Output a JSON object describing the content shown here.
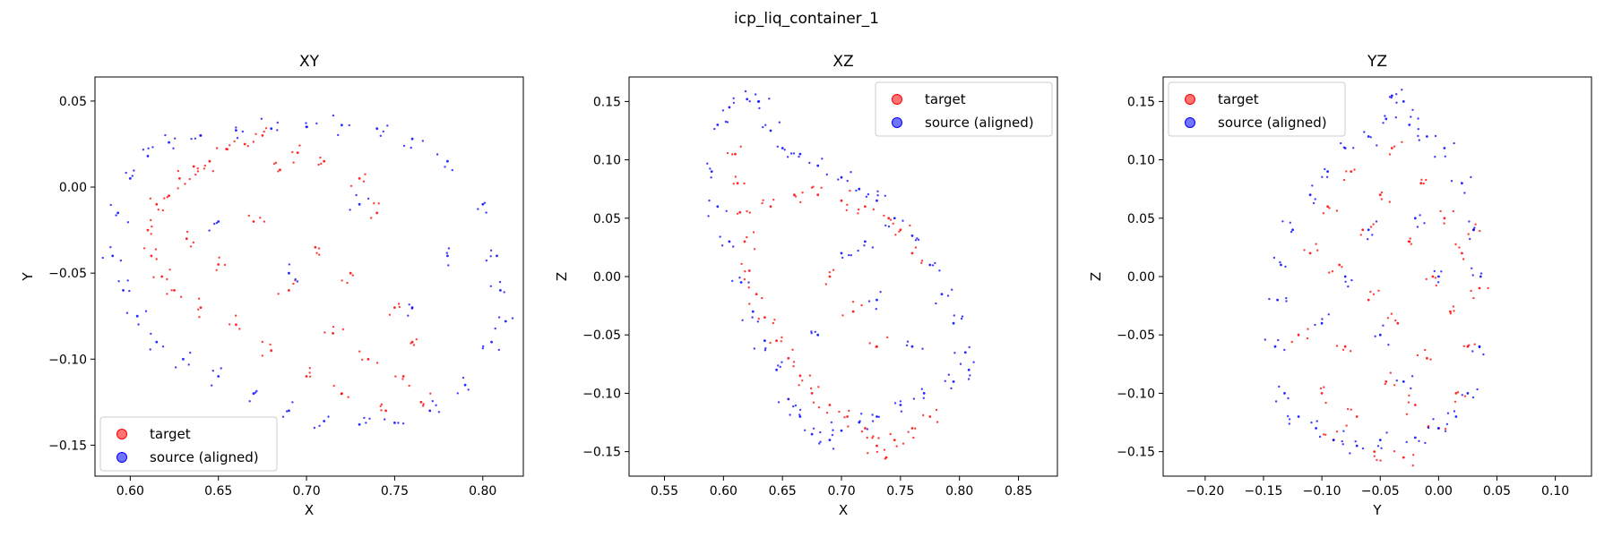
{
  "figure": {
    "title": "icp_liq_container_1"
  },
  "legend": {
    "target": "target",
    "source": "source (aligned)"
  },
  "colors": {
    "target": "#ff0000",
    "source": "#0000ff"
  },
  "chart_data": [
    {
      "type": "scatter",
      "title": "XY",
      "xlabel": "X",
      "ylabel": "Y",
      "xlim": [
        0.58,
        0.823
      ],
      "ylim": [
        -0.168,
        0.064
      ],
      "xticks": [
        0.6,
        0.65,
        0.7,
        0.75,
        0.8
      ],
      "xtick_labels": [
        "0.60",
        "0.65",
        "0.70",
        "0.75",
        "0.80"
      ],
      "yticks": [
        0.05,
        0.0,
        -0.05,
        -0.1,
        -0.15
      ],
      "ytick_labels": [
        "0.05",
        "0.00",
        "−0.05",
        "−0.10",
        "−0.15"
      ],
      "legend_position": "lower-left",
      "grid": false,
      "series": [
        {
          "name": "target",
          "color": "#ff0000",
          "points": [
            [
              0.61,
              -0.025
            ],
            [
              0.612,
              -0.04
            ],
            [
              0.615,
              -0.01
            ],
            [
              0.618,
              -0.052
            ],
            [
              0.622,
              -0.005
            ],
            [
              0.625,
              -0.06
            ],
            [
              0.628,
              0.005
            ],
            [
              0.632,
              -0.03
            ],
            [
              0.636,
              0.012
            ],
            [
              0.64,
              -0.07
            ],
            [
              0.645,
              0.015
            ],
            [
              0.65,
              -0.045
            ],
            [
              0.655,
              0.022
            ],
            [
              0.66,
              -0.08
            ],
            [
              0.665,
              0.025
            ],
            [
              0.67,
              -0.02
            ],
            [
              0.675,
              0.03
            ],
            [
              0.68,
              -0.095
            ],
            [
              0.685,
              0.01
            ],
            [
              0.69,
              -0.06
            ],
            [
              0.695,
              0.02
            ],
            [
              0.7,
              -0.11
            ],
            [
              0.705,
              -0.035
            ],
            [
              0.71,
              0.015
            ],
            [
              0.715,
              -0.085
            ],
            [
              0.72,
              -0.12
            ],
            [
              0.725,
              -0.05
            ],
            [
              0.73,
              0.005
            ],
            [
              0.735,
              -0.1
            ],
            [
              0.74,
              -0.015
            ],
            [
              0.745,
              -0.13
            ],
            [
              0.75,
              -0.07
            ],
            [
              0.755,
              -0.11
            ],
            [
              0.76,
              -0.09
            ],
            [
              0.765,
              -0.125
            ]
          ]
        },
        {
          "name": "source (aligned)",
          "color": "#0000ff",
          "points": [
            [
              0.59,
              -0.04
            ],
            [
              0.593,
              -0.015
            ],
            [
              0.596,
              -0.06
            ],
            [
              0.6,
              0.005
            ],
            [
              0.604,
              -0.075
            ],
            [
              0.61,
              0.018
            ],
            [
              0.615,
              -0.09
            ],
            [
              0.622,
              0.026
            ],
            [
              0.63,
              -0.1
            ],
            [
              0.64,
              0.03
            ],
            [
              0.65,
              -0.11
            ],
            [
              0.66,
              0.033
            ],
            [
              0.67,
              -0.12
            ],
            [
              0.68,
              0.034
            ],
            [
              0.69,
              -0.13
            ],
            [
              0.7,
              0.035
            ],
            [
              0.71,
              -0.136
            ],
            [
              0.72,
              0.036
            ],
            [
              0.73,
              -0.138
            ],
            [
              0.74,
              0.034
            ],
            [
              0.75,
              -0.137
            ],
            [
              0.76,
              0.028
            ],
            [
              0.77,
              -0.13
            ],
            [
              0.78,
              0.015
            ],
            [
              0.79,
              -0.115
            ],
            [
              0.8,
              -0.01
            ],
            [
              0.805,
              -0.09
            ],
            [
              0.81,
              -0.06
            ],
            [
              0.813,
              -0.078
            ],
            [
              0.808,
              -0.04
            ],
            [
              0.65,
              -0.02
            ],
            [
              0.69,
              -0.05
            ],
            [
              0.73,
              -0.01
            ],
            [
              0.76,
              -0.07
            ],
            [
              0.78,
              -0.04
            ]
          ]
        }
      ]
    },
    {
      "type": "scatter",
      "title": "XZ",
      "xlabel": "X",
      "ylabel": "Z",
      "xlim": [
        0.52,
        0.883
      ],
      "ylim": [
        -0.171,
        0.171
      ],
      "xticks": [
        0.55,
        0.6,
        0.65,
        0.7,
        0.75,
        0.8,
        0.85
      ],
      "xtick_labels": [
        "0.55",
        "0.60",
        "0.65",
        "0.70",
        "0.75",
        "0.80",
        "0.85"
      ],
      "yticks": [
        0.15,
        0.1,
        0.05,
        0.0,
        -0.05,
        -0.1,
        -0.15
      ],
      "ytick_labels": [
        "0.15",
        "0.10",
        "0.05",
        "0.00",
        "−0.05",
        "−0.10",
        "−0.15"
      ],
      "legend_position": "top-right",
      "grid": false,
      "series": [
        {
          "name": "target",
          "color": "#ff0000",
          "points": [
            [
              0.61,
              0.105
            ],
            [
              0.612,
              0.08
            ],
            [
              0.614,
              0.055
            ],
            [
              0.618,
              0.03
            ],
            [
              0.622,
              0.005
            ],
            [
              0.628,
              -0.015
            ],
            [
              0.635,
              -0.035
            ],
            [
              0.645,
              -0.055
            ],
            [
              0.655,
              -0.07
            ],
            [
              0.665,
              -0.085
            ],
            [
              0.675,
              -0.1
            ],
            [
              0.69,
              -0.11
            ],
            [
              0.705,
              -0.12
            ],
            [
              0.72,
              -0.13
            ],
            [
              0.73,
              -0.145
            ],
            [
              0.738,
              -0.155
            ],
            [
              0.745,
              -0.14
            ],
            [
              0.76,
              -0.13
            ],
            [
              0.775,
              -0.12
            ],
            [
              0.64,
              0.06
            ],
            [
              0.66,
              0.07
            ],
            [
              0.68,
              0.07
            ],
            [
              0.7,
              0.065
            ],
            [
              0.72,
              0.06
            ],
            [
              0.74,
              0.05
            ],
            [
              0.75,
              0.04
            ],
            [
              0.69,
              0.0
            ],
            [
              0.71,
              -0.03
            ],
            [
              0.73,
              -0.06
            ],
            [
              0.76,
              0.02
            ]
          ]
        },
        {
          "name": "source (aligned)",
          "color": "#0000ff",
          "points": [
            [
              0.595,
              0.13
            ],
            [
              0.605,
              0.145
            ],
            [
              0.62,
              0.152
            ],
            [
              0.63,
              0.15
            ],
            [
              0.64,
              0.125
            ],
            [
              0.65,
              0.11
            ],
            [
              0.665,
              0.105
            ],
            [
              0.68,
              0.095
            ],
            [
              0.7,
              0.085
            ],
            [
              0.715,
              0.075
            ],
            [
              0.73,
              0.065
            ],
            [
              0.745,
              0.05
            ],
            [
              0.76,
              0.035
            ],
            [
              0.775,
              0.01
            ],
            [
              0.785,
              -0.015
            ],
            [
              0.795,
              -0.04
            ],
            [
              0.805,
              -0.065
            ],
            [
              0.808,
              -0.08
            ],
            [
              0.795,
              -0.09
            ],
            [
              0.77,
              -0.1
            ],
            [
              0.75,
              -0.11
            ],
            [
              0.73,
              -0.12
            ],
            [
              0.715,
              -0.125
            ],
            [
              0.7,
              -0.132
            ],
            [
              0.69,
              -0.14
            ],
            [
              0.675,
              -0.135
            ],
            [
              0.665,
              -0.12
            ],
            [
              0.655,
              -0.105
            ],
            [
              0.645,
              -0.08
            ],
            [
              0.635,
              -0.055
            ],
            [
              0.625,
              -0.03
            ],
            [
              0.615,
              -0.005
            ],
            [
              0.605,
              0.03
            ],
            [
              0.595,
              0.06
            ],
            [
              0.59,
              0.09
            ],
            [
              0.7,
              0.02
            ],
            [
              0.73,
              -0.02
            ],
            [
              0.76,
              -0.06
            ],
            [
              0.68,
              -0.05
            ],
            [
              0.72,
              0.03
            ]
          ]
        }
      ]
    },
    {
      "type": "scatter",
      "title": "YZ",
      "xlabel": "Y",
      "ylabel": "Z",
      "xlim": [
        -0.236,
        0.131
      ],
      "ylim": [
        -0.171,
        0.171
      ],
      "xticks": [
        -0.2,
        -0.15,
        -0.1,
        -0.05,
        0.0,
        0.05,
        0.1
      ],
      "xtick_labels": [
        "−0.20",
        "−0.15",
        "−0.10",
        "−0.05",
        "0.00",
        "0.05",
        "0.10"
      ],
      "yticks": [
        0.15,
        0.1,
        0.05,
        0.0,
        -0.05,
        -0.1,
        -0.15
      ],
      "ytick_labels": [
        "0.15",
        "0.10",
        "0.05",
        "0.00",
        "−0.05",
        "−0.10",
        "−0.15"
      ],
      "legend_position": "top-left",
      "grid": false,
      "series": [
        {
          "name": "target",
          "color": "#ff0000",
          "points": [
            [
              -0.12,
              -0.05
            ],
            [
              -0.11,
              0.02
            ],
            [
              -0.1,
              -0.1
            ],
            [
              -0.095,
              0.06
            ],
            [
              -0.09,
              -0.14
            ],
            [
              -0.085,
              0.01
            ],
            [
              -0.08,
              -0.06
            ],
            [
              -0.075,
              0.09
            ],
            [
              -0.07,
              -0.12
            ],
            [
              -0.065,
              0.04
            ],
            [
              -0.06,
              -0.02
            ],
            [
              -0.055,
              -0.15
            ],
            [
              -0.05,
              0.07
            ],
            [
              -0.045,
              -0.09
            ],
            [
              -0.04,
              0.11
            ],
            [
              -0.035,
              -0.04
            ],
            [
              -0.03,
              -0.155
            ],
            [
              -0.025,
              0.03
            ],
            [
              -0.02,
              -0.11
            ],
            [
              -0.015,
              0.08
            ],
            [
              -0.01,
              -0.07
            ],
            [
              -0.005,
              0.0
            ],
            [
              0.0,
              -0.13
            ],
            [
              0.005,
              0.05
            ],
            [
              0.01,
              -0.03
            ],
            [
              0.015,
              -0.1
            ],
            [
              0.02,
              0.02
            ],
            [
              0.025,
              -0.06
            ],
            [
              0.03,
              0.04
            ],
            [
              0.035,
              -0.01
            ]
          ]
        },
        {
          "name": "source (aligned)",
          "color": "#0000ff",
          "points": [
            [
              -0.14,
              -0.06
            ],
            [
              -0.138,
              -0.02
            ],
            [
              -0.135,
              0.01
            ],
            [
              -0.132,
              -0.1
            ],
            [
              -0.125,
              0.04
            ],
            [
              -0.12,
              -0.12
            ],
            [
              -0.11,
              0.07
            ],
            [
              -0.105,
              -0.13
            ],
            [
              -0.095,
              0.09
            ],
            [
              -0.09,
              -0.14
            ],
            [
              -0.08,
              0.11
            ],
            [
              -0.07,
              -0.145
            ],
            [
              -0.06,
              0.12
            ],
            [
              -0.05,
              -0.14
            ],
            [
              -0.045,
              0.135
            ],
            [
              -0.04,
              0.155
            ],
            [
              -0.03,
              0.15
            ],
            [
              -0.025,
              0.13
            ],
            [
              -0.02,
              -0.138
            ],
            [
              -0.01,
              0.12
            ],
            [
              0.0,
              -0.13
            ],
            [
              0.005,
              0.11
            ],
            [
              0.015,
              -0.12
            ],
            [
              0.02,
              0.08
            ],
            [
              0.025,
              -0.1
            ],
            [
              0.03,
              0.04
            ],
            [
              0.035,
              -0.06
            ],
            [
              0.036,
              0.0
            ],
            [
              -0.08,
              0.0
            ],
            [
              -0.05,
              -0.05
            ],
            [
              -0.02,
              0.05
            ],
            [
              -0.1,
              -0.04
            ],
            [
              0.0,
              0.0
            ],
            [
              -0.06,
              0.04
            ],
            [
              -0.03,
              -0.09
            ]
          ]
        }
      ]
    }
  ]
}
